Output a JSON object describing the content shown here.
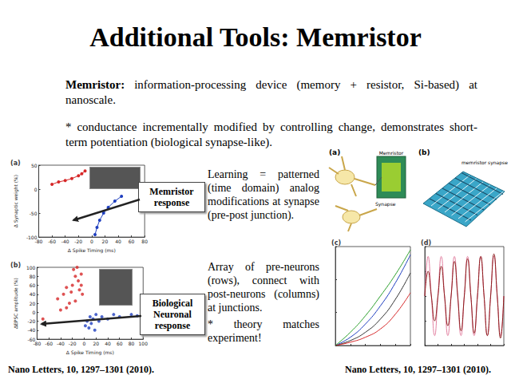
{
  "title": "Additional Tools: Memristor",
  "paragraphs": [
    {
      "bold": "Memristor:",
      "text": " information-processing device (memory + resistor, Si-based) at nanoscale."
    },
    {
      "bold": "",
      "text": "* conductance incrementally modified by controlling change, demonstrates short-term potentiation (biological synapse-like)."
    }
  ],
  "callouts": [
    "Memristor response",
    "Biological Neuronal response"
  ],
  "notes": [
    "Learning = patterned (time domain) analog modifications at synapse (pre-post junction).",
    "Array of pre-neurons (rows), connect with post-neurons (columns) at junctions.",
    "* theory matches experiment!"
  ],
  "references": [
    "Nano Letters, 10,  1297–1301 (2010).",
    "Nano Letters, 10, 1297–1301 (2010)."
  ],
  "figures": [
    {
      "panel": "(a)",
      "labels": [
        "Memristor",
        "Synapse"
      ]
    },
    {
      "panel": "(b)",
      "labels": [
        "memristor synapse"
      ]
    }
  ],
  "chart_data": [
    {
      "type": "scatter",
      "panel": "(a)",
      "x_label": "Δ Spike Timing (ms)",
      "y_label": "Δ Synaptic weight (%)",
      "xlim": [
        -80,
        80
      ],
      "xticks": [
        -80,
        -60,
        -40,
        -20,
        0,
        20,
        40,
        60,
        80
      ],
      "ylim": [
        -100,
        50
      ],
      "yticks": [
        -100,
        -50,
        0,
        50
      ],
      "series": [
        {
          "type": "line",
          "color": "#d62728",
          "marker": "circle",
          "line_style": "solid",
          "x": [
            -60,
            -50,
            -40,
            -30,
            -20,
            -15,
            -10
          ],
          "values": [
            10,
            15,
            18,
            22,
            28,
            32,
            38
          ]
        },
        {
          "type": "line",
          "color": "#1f3fbf",
          "marker": "circle",
          "line_style": "solid",
          "x": [
            5,
            8,
            12,
            18,
            25,
            35,
            45
          ],
          "values": [
            -95,
            -80,
            -65,
            -50,
            -38,
            -25,
            -15
          ]
        }
      ]
    },
    {
      "type": "scatter",
      "panel": "(b)",
      "x_label": "Δ Spike Timing (ms)",
      "y_label": "ΔEPSC amplitude (%)",
      "xlim": [
        -80,
        100
      ],
      "xticks": [
        -80,
        -60,
        -40,
        -20,
        0,
        20,
        40,
        60,
        80,
        100
      ],
      "ylim": [
        -60,
        100
      ],
      "yticks": [
        -60,
        -40,
        -20,
        0,
        20,
        40,
        60,
        80,
        100
      ],
      "series": [
        {
          "color": "#d62728",
          "marker": "circle",
          "x": [
            -70,
            -45,
            -35,
            -30,
            -25,
            -22,
            -20,
            -18,
            -15,
            -12,
            -10,
            -8,
            -5,
            -3,
            -30,
            -40,
            -15,
            -5
          ],
          "values": [
            -15,
            30,
            40,
            55,
            20,
            45,
            60,
            95,
            80,
            100,
            70,
            50,
            85,
            40,
            10,
            5,
            25,
            60
          ]
        },
        {
          "color": "#1f3fbf",
          "marker": "circle",
          "x": [
            2,
            5,
            8,
            10,
            12,
            15,
            18,
            20,
            25,
            30,
            40,
            50,
            60,
            80,
            90
          ],
          "values": [
            -30,
            -20,
            -35,
            -10,
            -25,
            -15,
            -40,
            -5,
            -20,
            -10,
            -15,
            -5,
            -10,
            -5,
            -8
          ]
        }
      ]
    },
    {
      "type": "line",
      "panel": "(c)",
      "tick_labels": false,
      "xlim": [
        0,
        1
      ],
      "xticks": [
        0,
        0.2,
        0.4,
        0.6,
        0.8,
        1
      ],
      "ylim": [
        0,
        6
      ],
      "yticks": [
        0,
        2,
        4,
        6
      ],
      "series": [
        {
          "color": "#333333",
          "x": [
            0,
            0.2,
            0.4,
            0.6,
            0.8,
            1
          ],
          "values": [
            0,
            0.3,
            0.8,
            1.6,
            2.8,
            4.4
          ]
        },
        {
          "color": "#1f3fbf",
          "x": [
            0,
            0.2,
            0.4,
            0.6,
            0.8,
            1
          ],
          "values": [
            0,
            0.5,
            1.3,
            2.4,
            3.8,
            5.5
          ]
        },
        {
          "color": "#d62728",
          "x": [
            0,
            0.2,
            0.4,
            0.6,
            0.8,
            1
          ],
          "values": [
            0,
            0.2,
            0.5,
            1.0,
            1.9,
            3.2
          ]
        },
        {
          "color": "#2ca02c",
          "x": [
            0,
            0.2,
            0.4,
            0.6,
            0.8,
            1
          ],
          "values": [
            0,
            0.8,
            1.8,
            3.0,
            4.3,
            5.8
          ]
        }
      ]
    },
    {
      "type": "line",
      "panel": "(d)",
      "tick_labels": false,
      "xlim": [
        0,
        6
      ],
      "xticks": [
        0,
        1,
        2,
        3,
        4,
        5,
        6
      ],
      "ylim": [
        -1,
        1
      ],
      "yticks": [
        -1,
        -0.5,
        0,
        0.5,
        1
      ],
      "series": [
        {
          "color": "#e37fa0",
          "x": [
            0,
            0.25,
            0.5,
            0.75,
            1,
            1.25,
            1.5,
            1.75,
            2,
            2.25,
            2.5,
            2.75,
            3,
            3.25,
            3.5,
            3.75,
            4,
            4.25,
            4.5,
            4.75,
            5,
            5.25,
            5.5,
            5.75,
            6
          ],
          "values": [
            0,
            0.8,
            0,
            -0.8,
            0,
            0.8,
            0,
            -0.8,
            0,
            0.8,
            0,
            -0.8,
            0,
            0.8,
            0,
            -0.8,
            0,
            0.8,
            0,
            -0.8,
            0,
            0.8,
            0,
            -0.8,
            0
          ]
        },
        {
          "color": "#8b1a1a",
          "x": [
            0,
            0.25,
            0.5,
            0.75,
            1,
            1.25,
            1.5,
            1.75,
            2,
            2.25,
            2.5,
            2.75,
            3,
            3.25,
            3.5,
            3.75,
            4,
            4.25,
            4.5,
            4.75,
            5,
            5.25,
            5.5,
            5.75,
            6
          ],
          "values": [
            0,
            0.5,
            0,
            -0.5,
            0,
            0.6,
            0,
            -0.6,
            0,
            0.7,
            0,
            -0.7,
            0,
            0.75,
            0,
            -0.75,
            0,
            0.8,
            0,
            -0.8,
            0,
            0.85,
            0,
            -0.85,
            0
          ]
        }
      ]
    }
  ]
}
